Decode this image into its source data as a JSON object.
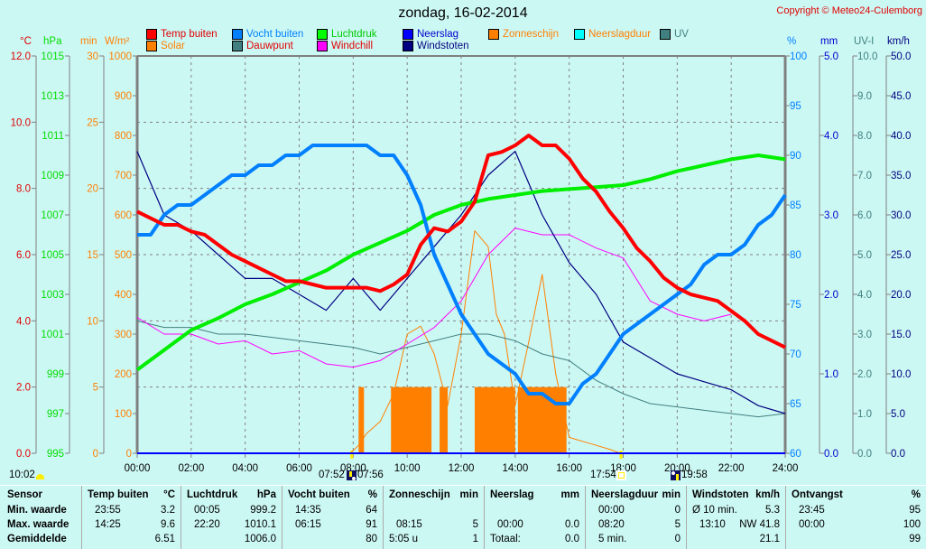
{
  "header": {
    "title": "zondag, 16-02-2014",
    "copyright": "Copyright © Meteo24-Culemborg"
  },
  "legend": [
    {
      "label": "Temp buiten",
      "color": "#ff0000",
      "text_color": "#e00000"
    },
    {
      "label": "Solar",
      "color": "#ff8000",
      "text_color": "#ff8000"
    },
    {
      "label": "Vocht buiten",
      "color": "#0080ff",
      "text_color": "#0080ff"
    },
    {
      "label": "Dauwpunt",
      "color": "#408080",
      "text_color": "#e00000"
    },
    {
      "label": "Luchtdruk",
      "color": "#00ff00",
      "text_color": "#00cc00"
    },
    {
      "label": "Windchill",
      "color": "#ff00ff",
      "text_color": "#e00000"
    },
    {
      "label": "Neerslag",
      "color": "#0000ff",
      "text_color": "#0000cc"
    },
    {
      "label": "Windstoten",
      "color": "#000080",
      "text_color": "#000080"
    },
    {
      "label": "Zonneschijn",
      "color": "#ff8000",
      "text_color": "#ff8000"
    },
    {
      "label": "Neerslagduur",
      "color": "#00ffff",
      "text_color": "#ff8000"
    },
    {
      "label": "UV",
      "color": "#408080",
      "text_color": "#408080"
    }
  ],
  "axes": {
    "left": [
      {
        "unit": "°C",
        "color": "#e00000",
        "min": 0,
        "max": 12,
        "ticks": [
          "0.0",
          "2.0",
          "4.0",
          "6.0",
          "8.0",
          "10.0",
          "12.0"
        ]
      },
      {
        "unit": "hPa",
        "color": "#00dd00",
        "min": 995,
        "max": 1015,
        "ticks": [
          "995",
          "997",
          "999",
          "1001",
          "1003",
          "1005",
          "1007",
          "1009",
          "1011",
          "1013",
          "1015"
        ]
      },
      {
        "unit": "min",
        "color": "#ff8000",
        "min": 0,
        "max": 30,
        "ticks": [
          "0",
          "5",
          "10",
          "15",
          "20",
          "25",
          "30"
        ]
      },
      {
        "unit": "W/m²",
        "color": "#ff8000",
        "min": 0,
        "max": 1000,
        "ticks": [
          "0",
          "100",
          "200",
          "300",
          "400",
          "500",
          "600",
          "700",
          "800",
          "900",
          "1000"
        ]
      }
    ],
    "right": [
      {
        "unit": "%",
        "color": "#0080ff",
        "min": 60,
        "max": 100,
        "ticks": [
          "60",
          "65",
          "70",
          "75",
          "80",
          "85",
          "90",
          "95",
          "100"
        ]
      },
      {
        "unit": "mm",
        "color": "#0000cc",
        "min": 0,
        "max": 5,
        "ticks": [
          "0.0",
          "1.0",
          "2.0",
          "3.0",
          "4.0",
          "5.0"
        ]
      },
      {
        "unit": "UV-I",
        "color": "#408080",
        "min": 0,
        "max": 10,
        "ticks": [
          "0.0",
          "1.0",
          "2.0",
          "3.0",
          "4.0",
          "5.0",
          "6.0",
          "7.0",
          "8.0",
          "9.0",
          "10.0"
        ]
      },
      {
        "unit": "km/h",
        "color": "#000080",
        "min": 0,
        "max": 50,
        "ticks": [
          "0.0",
          "5.0",
          "10.0",
          "15.0",
          "20.0",
          "25.0",
          "30.0",
          "35.0",
          "40.0",
          "45.0",
          "50.0"
        ]
      }
    ],
    "x_ticks": [
      "00:00",
      "02:00",
      "04:00",
      "06:00",
      "08:00",
      "10:00",
      "12:00",
      "14:00",
      "16:00",
      "18:00",
      "20:00",
      "22:00",
      "24:00"
    ]
  },
  "sun_events": {
    "daylength": "10:02",
    "civil_dawn": "07:52",
    "sunrise": "07:56",
    "sunset": "17:54",
    "civil_dusk": "19:58"
  },
  "chart_data": {
    "type": "line",
    "title": "zondag, 16-02-2014",
    "xlabel": "",
    "xlim": [
      0,
      24
    ],
    "grid": true,
    "legend_position": "top",
    "series": [
      {
        "name": "Temp buiten",
        "axis": "°C",
        "x": [
          0,
          0.5,
          1,
          1.5,
          2,
          2.5,
          3,
          3.5,
          4,
          4.5,
          5,
          5.5,
          6,
          6.5,
          7,
          7.5,
          8,
          8.5,
          9,
          9.5,
          10,
          10.5,
          11,
          11.5,
          12,
          12.5,
          13,
          13.5,
          14,
          14.5,
          15,
          15.5,
          16,
          16.5,
          17,
          17.5,
          18,
          18.5,
          19,
          19.5,
          20,
          20.5,
          21,
          21.5,
          22,
          22.5,
          23,
          23.5,
          24
        ],
        "values": [
          7.3,
          7.1,
          6.9,
          6.9,
          6.7,
          6.6,
          6.3,
          6.0,
          5.8,
          5.6,
          5.4,
          5.2,
          5.2,
          5.1,
          5.0,
          5.0,
          5.0,
          5.0,
          4.9,
          5.1,
          5.4,
          6.3,
          6.8,
          6.7,
          7.0,
          7.6,
          9.0,
          9.1,
          9.3,
          9.6,
          9.3,
          9.3,
          8.9,
          8.3,
          7.9,
          7.3,
          6.8,
          6.2,
          5.8,
          5.3,
          5.0,
          4.8,
          4.7,
          4.6,
          4.3,
          4.0,
          3.6,
          3.4,
          3.2
        ]
      },
      {
        "name": "Vocht buiten",
        "axis": "%",
        "x": [
          0,
          0.5,
          1,
          1.5,
          2,
          2.5,
          3,
          3.5,
          4,
          4.5,
          5,
          5.5,
          6,
          6.5,
          7,
          7.5,
          8,
          8.5,
          9,
          9.5,
          10,
          10.5,
          11,
          11.5,
          12,
          12.5,
          13,
          13.5,
          14,
          14.5,
          15,
          15.5,
          16,
          16.5,
          17,
          17.5,
          18,
          18.5,
          19,
          19.5,
          20,
          20.5,
          21,
          21.5,
          22,
          22.5,
          23,
          23.5,
          24
        ],
        "values": [
          82,
          82,
          84,
          85,
          85,
          86,
          87,
          88,
          88,
          89,
          89,
          90,
          90,
          91,
          91,
          91,
          91,
          91,
          90,
          90,
          88,
          85,
          80,
          77,
          74,
          72,
          70,
          69,
          68,
          66,
          66,
          65,
          65,
          67,
          68,
          70,
          72,
          73,
          74,
          75,
          76,
          77,
          79,
          80,
          80,
          81,
          83,
          84,
          86
        ]
      },
      {
        "name": "Luchtdruk",
        "axis": "hPa",
        "x": [
          0,
          1,
          2,
          3,
          4,
          5,
          6,
          7,
          8,
          9,
          10,
          11,
          12,
          13,
          14,
          15,
          16,
          17,
          18,
          19,
          20,
          21,
          22,
          23,
          24
        ],
        "values": [
          999.2,
          1000.2,
          1001.2,
          1001.8,
          1002.5,
          1003.0,
          1003.6,
          1004.2,
          1005.0,
          1005.6,
          1006.2,
          1007.0,
          1007.5,
          1007.8,
          1008.0,
          1008.2,
          1008.3,
          1008.4,
          1008.5,
          1008.8,
          1009.2,
          1009.5,
          1009.8,
          1010.0,
          1009.8
        ]
      },
      {
        "name": "Dauwpunt",
        "axis": "°C",
        "x": [
          0,
          1,
          2,
          3,
          4,
          5,
          6,
          7,
          8,
          9,
          10,
          11,
          12,
          13,
          14,
          15,
          16,
          17,
          18,
          19,
          20,
          21,
          22,
          23,
          24
        ],
        "values": [
          4.0,
          3.8,
          3.8,
          3.6,
          3.6,
          3.5,
          3.4,
          3.3,
          3.2,
          3.0,
          3.2,
          3.4,
          3.6,
          3.6,
          3.4,
          3.0,
          2.8,
          2.2,
          1.8,
          1.5,
          1.4,
          1.3,
          1.2,
          1.1,
          1.2
        ]
      },
      {
        "name": "Windchill",
        "axis": "°C",
        "x": [
          0,
          1,
          2,
          3,
          4,
          5,
          6,
          7,
          8,
          9,
          10,
          11,
          12,
          13,
          14,
          15,
          16,
          17,
          18,
          19,
          20,
          21,
          22
        ],
        "values": [
          4.1,
          3.6,
          3.6,
          3.3,
          3.4,
          3.0,
          3.1,
          2.7,
          2.6,
          2.8,
          3.3,
          3.8,
          4.6,
          6.0,
          6.8,
          6.6,
          6.6,
          6.2,
          5.9,
          4.6,
          4.2,
          4.0,
          4.2
        ]
      },
      {
        "name": "Windstoten",
        "axis": "km/h",
        "x": [
          0,
          1,
          2,
          3,
          4,
          5,
          6,
          7,
          8,
          9,
          10,
          11,
          12,
          13,
          14,
          15,
          16,
          17,
          18,
          19,
          20,
          21,
          22,
          23,
          24
        ],
        "values": [
          38,
          30,
          28,
          25,
          22,
          22,
          20,
          18,
          22,
          18,
          22,
          26,
          30,
          35,
          38,
          30,
          24,
          20,
          14,
          12,
          10,
          9,
          8,
          6,
          5
        ]
      },
      {
        "name": "Solar",
        "axis": "W/m²",
        "x": [
          7.9,
          8.2,
          8.5,
          9,
          9.5,
          10,
          10.5,
          11,
          11.5,
          12,
          12.5,
          13,
          13.3,
          13.6,
          14,
          14.5,
          15,
          15.5,
          16,
          16.5,
          17,
          17.5,
          17.9
        ],
        "values": [
          0,
          20,
          50,
          80,
          150,
          300,
          320,
          250,
          120,
          300,
          560,
          520,
          350,
          300,
          120,
          280,
          450,
          200,
          40,
          30,
          20,
          10,
          0
        ]
      },
      {
        "name": "Zonneschijn",
        "axis": "min",
        "x": [
          8.2,
          8.4,
          9.4,
          10.9,
          11.2,
          11.5,
          12.5,
          14.0,
          14.1,
          15.9
        ],
        "values": [
          5,
          0,
          5,
          5,
          0,
          5,
          5,
          5,
          0,
          5
        ]
      },
      {
        "name": "Neerslag",
        "axis": "mm",
        "x": [
          0,
          24
        ],
        "values": [
          0.0,
          0.0
        ]
      }
    ]
  },
  "stats": {
    "columns": [
      {
        "title": "Sensor",
        "unit": "",
        "rows": [
          {
            "time": "Min. waarde",
            "value": ""
          },
          {
            "time": "Max. waarde",
            "value": ""
          },
          {
            "time": "Gemiddelde",
            "value": ""
          }
        ]
      },
      {
        "title": "Temp buiten",
        "unit": "°C",
        "rows": [
          {
            "time": "23:55",
            "value": "3.2"
          },
          {
            "time": "14:25",
            "value": "9.6"
          },
          {
            "time": "",
            "value": "6.51"
          }
        ]
      },
      {
        "title": "Luchtdruk",
        "unit": "hPa",
        "rows": [
          {
            "time": "00:05",
            "value": "999.2"
          },
          {
            "time": "22:20",
            "value": "1010.1"
          },
          {
            "time": "",
            "value": "1006.0"
          }
        ]
      },
      {
        "title": "Vocht buiten",
        "unit": "%",
        "rows": [
          {
            "time": "14:35",
            "value": "64"
          },
          {
            "time": "06:15",
            "value": "91"
          },
          {
            "time": "",
            "value": "80"
          }
        ]
      },
      {
        "title": "Zonneschijn",
        "unit": "min",
        "rows": [
          {
            "time": "",
            "value": ""
          },
          {
            "time": "08:15",
            "value": "5"
          },
          {
            "time": "5:05 u",
            "value": "1"
          }
        ]
      },
      {
        "title": "Neerslag",
        "unit": "mm",
        "rows": [
          {
            "time": "",
            "value": ""
          },
          {
            "time": "00:00",
            "value": "0.0"
          },
          {
            "time": "Totaal:",
            "value": "0.0"
          }
        ]
      },
      {
        "title": "Neerslagduur",
        "unit": "min",
        "rows": [
          {
            "time": "00:00",
            "value": "0"
          },
          {
            "time": "08:20",
            "value": "5"
          },
          {
            "time": "5 min.",
            "value": "0"
          }
        ]
      },
      {
        "title": "Windstoten",
        "unit": "km/h",
        "rows": [
          {
            "time": "Ø 10 min.",
            "value": "5.3"
          },
          {
            "time": "13:10",
            "value": "NW 41.8"
          },
          {
            "time": "",
            "value": "21.1"
          }
        ]
      },
      {
        "title": "Ontvangst",
        "unit": "%",
        "rows": [
          {
            "time": "23:45",
            "value": "95"
          },
          {
            "time": "00:00",
            "value": "100"
          },
          {
            "time": "",
            "value": "99"
          }
        ]
      }
    ]
  }
}
